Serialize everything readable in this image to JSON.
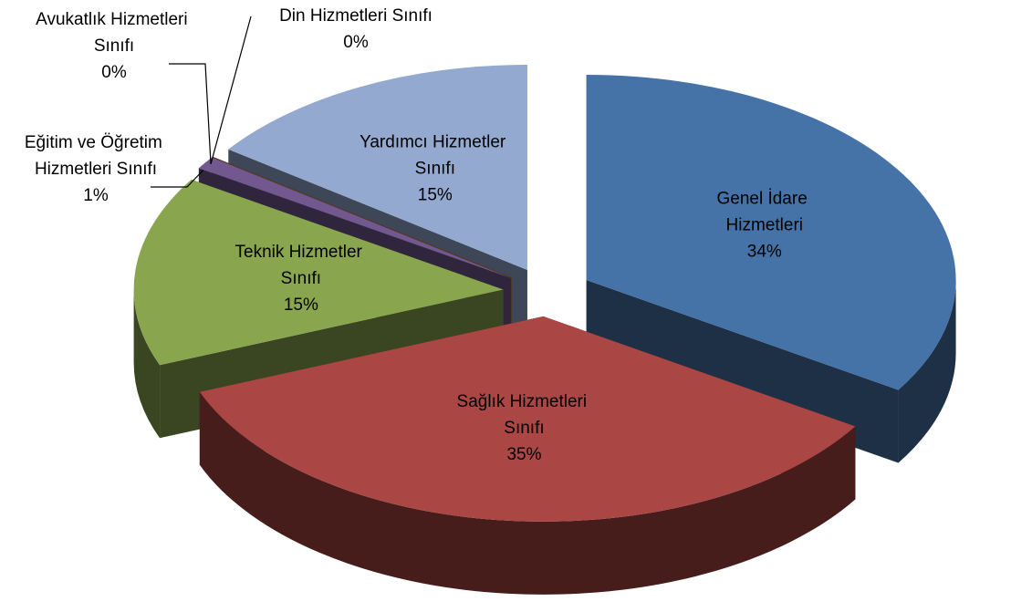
{
  "chart_data": {
    "type": "pie3d",
    "categories": [
      "Genel İdare Hizmetleri",
      "Sağlık Hizmetleri Sınıfı",
      "Teknik Hizmetler Sınıfı",
      "Eğitim ve Öğretim Hizmetleri Sınıfı",
      "Avukatlık Hizmetleri Sınıfı",
      "Din Hizmetleri Sınıfı",
      "Yardımcı Hizmetler Sınıfı"
    ],
    "values": [
      34,
      35,
      15,
      1,
      0,
      0,
      15
    ],
    "value_labels": [
      "34%",
      "35%",
      "15%",
      "1%",
      "0%",
      "0%",
      "15%"
    ],
    "colors": [
      "#4572a7",
      "#aa4643",
      "#89a54e",
      "#71588f",
      "#4198af",
      "#db843d",
      "#93a9cf"
    ]
  }
}
